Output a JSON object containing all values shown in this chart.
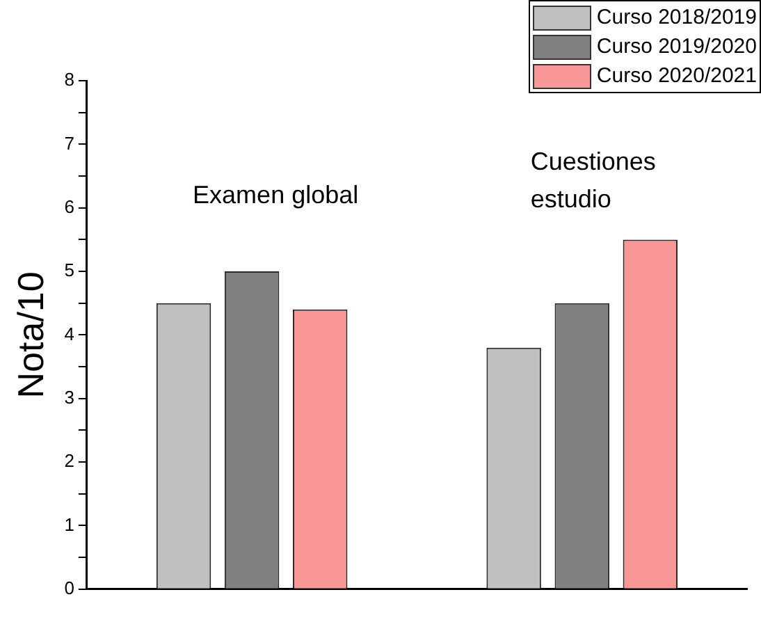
{
  "chart_data": {
    "type": "bar",
    "ylabel": "Nota/10",
    "categories": [
      null,
      null
    ],
    "series": [
      {
        "name": "Curso 2018/2019",
        "color": "#c0c0c0",
        "values": [
          4.5,
          3.8
        ]
      },
      {
        "name": "Curso 2019/2020",
        "color": "#808080",
        "values": [
          5.0,
          4.5
        ]
      },
      {
        "name": "Curso 2020/2021",
        "color": "#f99696",
        "values": [
          4.4,
          5.5
        ]
      }
    ],
    "annotations": [
      "Examen global",
      "Cuestiones\nestudio"
    ],
    "ylim": [
      0,
      8
    ],
    "yticks": [
      0,
      {
        "value": 0.5,
        "label": null
      },
      1,
      {
        "value": 1.5,
        "label": null
      },
      2,
      {
        "value": 2.5,
        "label": null
      },
      3,
      {
        "value": 3.5,
        "label": null
      },
      4,
      {
        "value": 4.5,
        "label": null
      },
      5,
      {
        "value": 5.5,
        "label": null
      },
      6,
      {
        "value": 6.5,
        "label": null
      },
      7,
      {
        "value": 7.5,
        "label": null
      },
      8
    ],
    "grid": false,
    "legend": "top right"
  }
}
